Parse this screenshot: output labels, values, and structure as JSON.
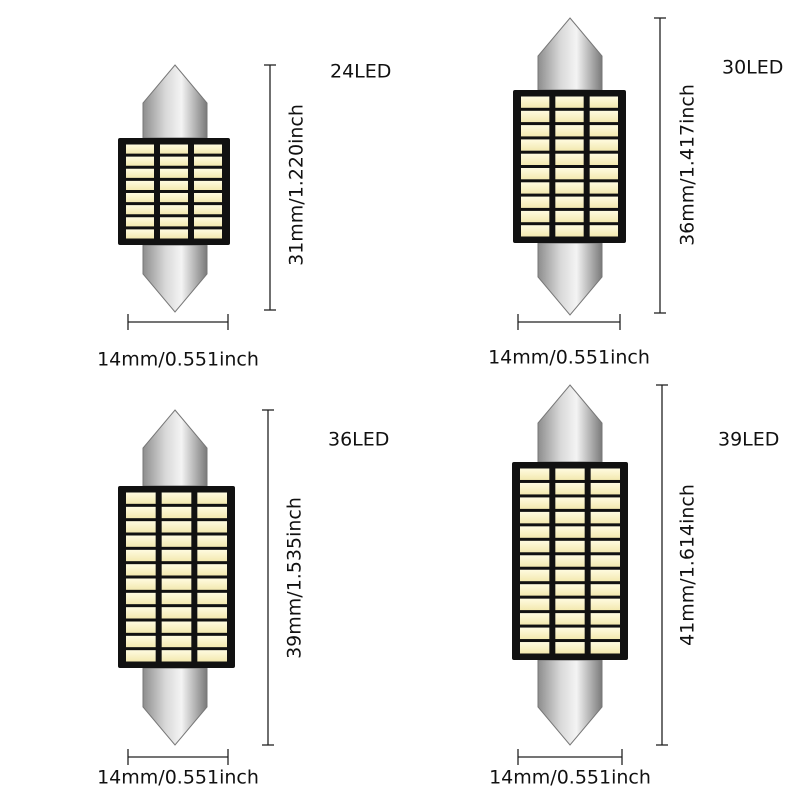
{
  "panels": [
    {
      "led": "24LED",
      "length": "31mm/1.220inch",
      "width": "14mm/0.551inch"
    },
    {
      "led": "30LED",
      "length": "36mm/1.417inch",
      "width": "14mm/0.551inch"
    },
    {
      "led": "36LED",
      "length": "39mm/1.535inch",
      "width": "14mm/0.551inch"
    },
    {
      "led": "39LED",
      "length": "41mm/1.614inch",
      "width": "14mm/0.551inch"
    }
  ]
}
